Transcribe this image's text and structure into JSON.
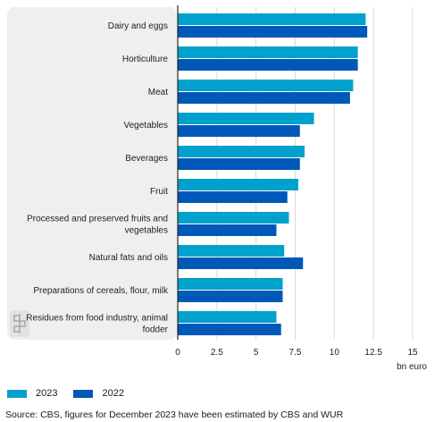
{
  "chart_data": {
    "type": "bar",
    "orientation": "horizontal",
    "categories": [
      "Dairy and eggs",
      "Horticulture",
      "Meat",
      "Vegetables",
      "Beverages",
      "Fruit",
      "Processed and preserved fruits and vegetables",
      "Natural fats and oils",
      "Preparations of cereals, flour, milk",
      "Residues from food industry, animal fodder"
    ],
    "category_lines": [
      [
        "Dairy and eggs"
      ],
      [
        "Horticulture"
      ],
      [
        "Meat"
      ],
      [
        "Vegetables"
      ],
      [
        "Beverages"
      ],
      [
        "Fruit"
      ],
      [
        "Processed and preserved fruits and",
        "vegetables"
      ],
      [
        "Natural fats and oils"
      ],
      [
        "Preparations of cereals, flour, milk"
      ],
      [
        "Residues from food industry, animal",
        "fodder"
      ]
    ],
    "series": [
      {
        "name": "2023",
        "color": "#00a1cd",
        "values": [
          12.0,
          11.5,
          11.2,
          8.7,
          8.1,
          7.7,
          7.1,
          6.8,
          6.7,
          6.3
        ]
      },
      {
        "name": "2022",
        "color": "#0058b8",
        "values": [
          12.1,
          11.5,
          11.0,
          7.8,
          7.8,
          7.0,
          6.3,
          8.0,
          6.7,
          6.6
        ]
      }
    ],
    "xlim": [
      0,
      15
    ],
    "xticks": [
      "0",
      "2.5",
      "5",
      "7.5",
      "10",
      "12.5",
      "15"
    ],
    "xlabel": "bn euro",
    "grid": true,
    "legend_position": "bottom-left"
  },
  "source": "Source: CBS, figures for December 2023 have been estimated by CBS and WUR",
  "colors": {
    "panel": "#efefef",
    "grid": "#d9d9d9",
    "axis": "#222222"
  }
}
